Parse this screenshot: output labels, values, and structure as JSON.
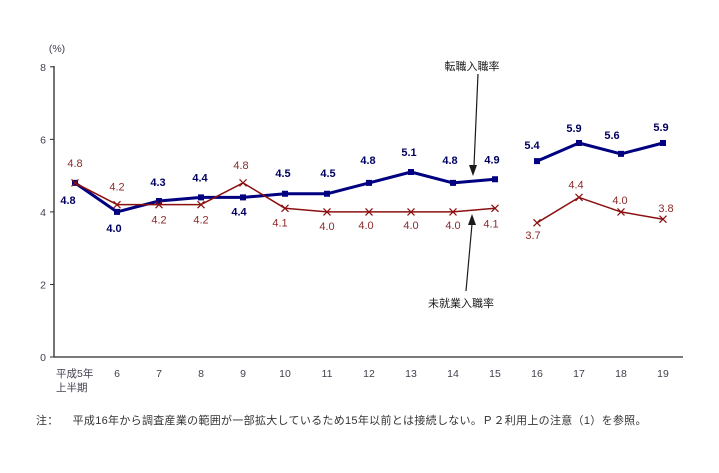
{
  "chart_data": {
    "type": "line",
    "title": "",
    "unit_label": "(%)",
    "xlabel": "",
    "ylabel": "(%)",
    "ylim": [
      0,
      8
    ],
    "yticks": [
      0,
      2,
      4,
      6,
      8
    ],
    "grid": false,
    "legend_position": "inline-annotations",
    "categories": [
      "平成5年|上半期",
      "6",
      "7",
      "8",
      "9",
      "10",
      "11",
      "12",
      "13",
      "14",
      "15",
      "16",
      "17",
      "18",
      "19"
    ],
    "break_after_index": 10,
    "break_reason": "series not connected between 15 and 16",
    "series": [
      {
        "id": "job-change-hire-rate",
        "name": "転職入職率",
        "color": "#000080",
        "label_color": "#000060",
        "marker": "square",
        "line_width": 3,
        "labels_bold": true,
        "values": [
          4.8,
          4.0,
          4.3,
          4.4,
          4.4,
          4.5,
          4.5,
          4.8,
          5.1,
          4.8,
          4.9,
          5.4,
          5.9,
          5.6,
          5.9
        ],
        "label_offsets": [
          [
            -7,
            21
          ],
          [
            -3,
            20
          ],
          [
            -1,
            -15
          ],
          [
            -1,
            -16
          ],
          [
            -4,
            18
          ],
          [
            -2,
            -17
          ],
          [
            1,
            -17
          ],
          [
            -1,
            -19
          ],
          [
            -2,
            -16
          ],
          [
            -3,
            -19
          ],
          [
            -3,
            -16
          ],
          [
            -5,
            -12
          ],
          [
            -5,
            -11
          ],
          [
            -9,
            -15
          ],
          [
            -2,
            -12
          ]
        ]
      },
      {
        "id": "new-entry-hire-rate",
        "name": "未就業入職率",
        "color": "#8B1010",
        "label_color": "#8B2A2A",
        "marker": "x",
        "line_width": 1.5,
        "labels_bold": false,
        "values": [
          4.8,
          4.2,
          4.2,
          4.2,
          4.8,
          4.1,
          4.0,
          4.0,
          4.0,
          4.0,
          4.1,
          3.7,
          4.4,
          4.0,
          3.8
        ],
        "label_offsets": [
          [
            0,
            -16
          ],
          [
            0,
            -14
          ],
          [
            0,
            19
          ],
          [
            0,
            19
          ],
          [
            -2,
            -14
          ],
          [
            -5,
            18
          ],
          [
            0,
            18
          ],
          [
            -3,
            17
          ],
          [
            0,
            17
          ],
          [
            0,
            17
          ],
          [
            -4,
            19
          ],
          [
            -4,
            16
          ],
          [
            -3,
            -9
          ],
          [
            -1,
            -8
          ],
          [
            3,
            -7
          ]
        ]
      }
    ],
    "annotations": [
      {
        "text": "転職入職率",
        "points_to_series": "job-change-hire-rate",
        "arrow": "down"
      },
      {
        "text": "未就業入職率",
        "points_to_series": "new-entry-hire-rate",
        "arrow": "up"
      }
    ]
  },
  "note": {
    "prefix": "注：",
    "text": "平成16年から調査産業の範囲が一部拡大しているため15年以前とは接続しない。Ｐ２利用上の注意（1）を参照。"
  }
}
